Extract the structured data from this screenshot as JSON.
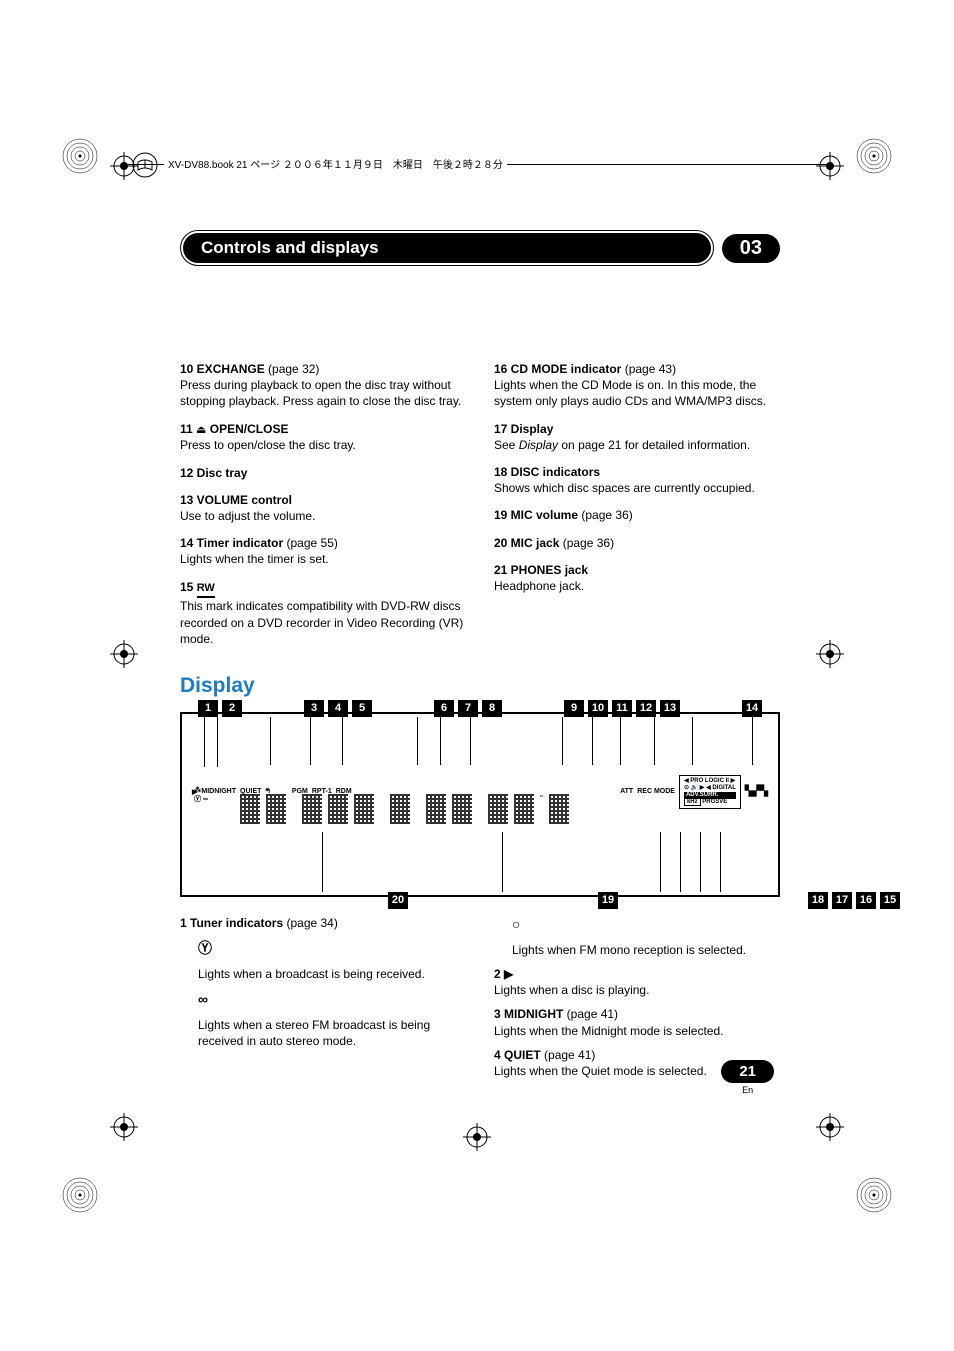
{
  "header_text": "XV-DV88.book  21 ページ  ２００６年１１月９日　木曜日　午後２時２８分",
  "chapter_badge": "03",
  "title": "Controls and displays",
  "left_col": [
    {
      "head": "10  EXCHANGE",
      "page": " (page 32)",
      "body": "Press during playback to open the disc tray without stopping playback. Press again to close the disc tray."
    },
    {
      "head": "11  ",
      "eject": true,
      "head2": " OPEN/CLOSE",
      "body": "Press to open/close the disc tray."
    },
    {
      "head": "12  Disc tray",
      "body": ""
    },
    {
      "head": "13  VOLUME control",
      "body": "Use to adjust the volume."
    },
    {
      "head": "14  Timer indicator",
      "page": " (page 55)",
      "body": "Lights when the timer is set."
    },
    {
      "head": "15  ",
      "rw": true,
      "body": "This mark indicates compatibility with DVD-RW discs recorded on a DVD recorder in Video Recording (VR) mode."
    }
  ],
  "right_col": [
    {
      "head": "16  CD MODE indicator",
      "page": " (page 43)",
      "body": "Lights when the CD Mode is on. In this mode, the system only plays audio CDs and WMA/MP3 discs."
    },
    {
      "head": "17  Display",
      "body_pre": "See ",
      "body_italic": "Display",
      "body_post": " on page 21 for detailed information."
    },
    {
      "head": "18  DISC indicators",
      "body": "Shows which disc spaces are currently occupied."
    },
    {
      "head": "19  MIC volume",
      "page": " (page 36)",
      "body": ""
    },
    {
      "head": "20  MIC jack",
      "page": " (page 36)",
      "body": ""
    },
    {
      "head": "21  PHONES jack",
      "body": "Headphone jack."
    }
  ],
  "section_title": "Display",
  "callouts_top": [
    "1",
    "2",
    "3",
    "4",
    "5",
    "6",
    "7",
    "8",
    "9",
    "10",
    "11",
    "12",
    "13",
    "14"
  ],
  "callouts_bottom_left": [
    "20"
  ],
  "callouts_bottom_center": [
    "19"
  ],
  "callouts_bottom_right": [
    "18",
    "17",
    "16",
    "15"
  ],
  "lcd_labels_left": [
    "MIDNIGHT",
    "QUIET"
  ],
  "lcd_labels_mid": [
    "PGM",
    "RPT-1",
    "RDM"
  ],
  "lcd_labels_right": [
    "ATT",
    "REC MODE"
  ],
  "lcd_panel_right": [
    "PRO LOGIC II",
    "DIGITAL",
    "ADV.SURR.",
    "PRGSVE"
  ],
  "lcd_units": [
    "kHz",
    "MHz"
  ],
  "tuner": {
    "head": "1    Tuner indicators",
    "page": " (page 34)",
    "icon1_body": "Lights when a broadcast is being received.",
    "icon2_body": "Lights when a stereo FM broadcast is being received in auto stereo mode.",
    "icon3_body": "Lights when FM mono reception is selected."
  },
  "below_items": [
    {
      "head": "2    ▶",
      "body": "Lights when a disc is playing."
    },
    {
      "head": "3    MIDNIGHT",
      "page": " (page 41)",
      "body": "Lights when the Midnight mode is selected."
    },
    {
      "head": "4    QUIET",
      "page": " (page 41)",
      "body": "Lights when the Quiet mode is selected."
    }
  ],
  "page_number": "21",
  "page_lang": "En",
  "colors": {
    "accent": "#1a7cc4",
    "text": "#000000",
    "bg": "#ffffff"
  }
}
